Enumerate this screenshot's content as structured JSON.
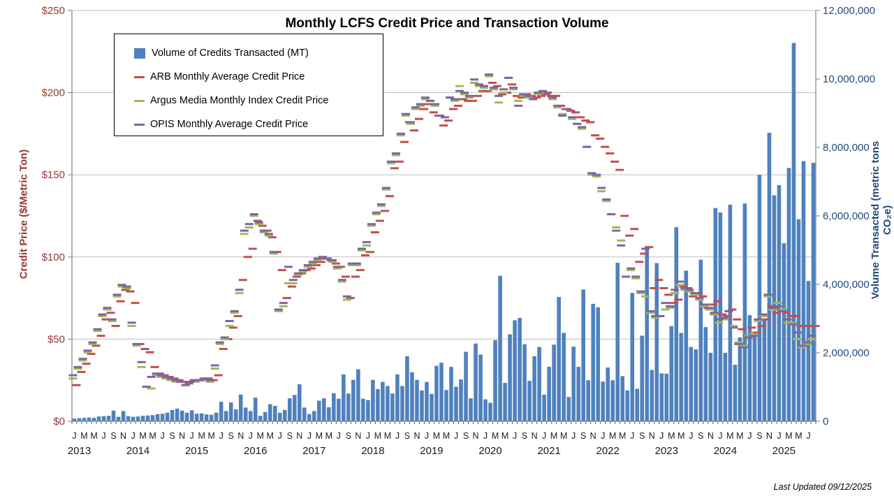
{
  "title": "Monthly LCFS Credit Price and Transaction Volume",
  "footer": "Last Updated 09/12/2025",
  "legend": {
    "volume_label": "Volume of Credits Transacted (MT)",
    "arb_label": "ARB Monthly Average Credit Price",
    "argus_label": "Argus Media Monthly Index Credit Price",
    "opis_label": "OPIS Monthly Average Credit Price"
  },
  "axes": {
    "left_title": "Credit Price  ($/Metric Ton)",
    "right_title": "Volume Transacted (metric tons CO₂e)",
    "left_tick_labels": [
      "$0",
      "$50",
      "$100",
      "$150",
      "$200",
      "$250"
    ],
    "right_tick_labels": [
      "0",
      "2,000,000",
      "4,000,000",
      "6,000,000",
      "8,000,000",
      "10,000,000",
      "12,000,000"
    ]
  },
  "colors": {
    "bar_blue": "#4F81BD",
    "arb_red": "#C0504D",
    "argus_green": "#9BBB59",
    "opis_purple": "#8064A2",
    "left_axis_text": "#953735",
    "right_axis_text": "#1F497D",
    "gridline": "#BFBFBF",
    "axis_line": "#808080"
  },
  "chart_data": {
    "type": "bar",
    "title": "Monthly LCFS Credit Price and Transaction Volume",
    "xlabel": "",
    "left_axis": {
      "label": "Credit Price ($/Metric Ton)",
      "min": 0,
      "max": 250,
      "tick_step": 50
    },
    "right_axis": {
      "label": "Volume Transacted (metric tons CO2e)",
      "min": 0,
      "max": 12000000,
      "tick_step": 2000000
    },
    "grid": true,
    "legend_position": "top-left-inside",
    "years": [
      {
        "label": "2013",
        "months": 12
      },
      {
        "label": "2014",
        "months": 12
      },
      {
        "label": "2015",
        "months": 12
      },
      {
        "label": "2016",
        "months": 12
      },
      {
        "label": "2017",
        "months": 12
      },
      {
        "label": "2018",
        "months": 12
      },
      {
        "label": "2019",
        "months": 12
      },
      {
        "label": "2020",
        "months": 12
      },
      {
        "label": "2021",
        "months": 12
      },
      {
        "label": "2022",
        "months": 12
      },
      {
        "label": "2023",
        "months": 12
      },
      {
        "label": "2024",
        "months": 12
      },
      {
        "label": "2025",
        "months": 8
      }
    ],
    "month_tick_letters": [
      "J",
      "",
      "M",
      "",
      "M",
      "",
      "J",
      "",
      "S",
      "",
      "N",
      ""
    ],
    "series": [
      {
        "name": "Volume of Credits Transacted (MT)",
        "type": "bar",
        "axis": "right",
        "color": "#4F81BD",
        "unit": "million metric tons",
        "values": [
          0.08,
          0.09,
          0.1,
          0.11,
          0.1,
          0.14,
          0.15,
          0.16,
          0.31,
          0.13,
          0.3,
          0.15,
          0.13,
          0.14,
          0.16,
          0.17,
          0.18,
          0.21,
          0.22,
          0.25,
          0.33,
          0.37,
          0.31,
          0.25,
          0.32,
          0.22,
          0.23,
          0.2,
          0.19,
          0.25,
          0.57,
          0.3,
          0.55,
          0.35,
          0.78,
          0.4,
          0.3,
          0.69,
          0.16,
          0.27,
          0.5,
          0.45,
          0.25,
          0.33,
          0.67,
          0.77,
          1.08,
          0.4,
          0.21,
          0.3,
          0.6,
          0.67,
          0.41,
          0.82,
          0.66,
          1.37,
          0.81,
          1.21,
          1.52,
          0.66,
          0.62,
          1.21,
          0.94,
          1.15,
          1.03,
          0.81,
          1.37,
          1.03,
          1.9,
          1.43,
          1.21,
          0.9,
          1.15,
          0.8,
          1.62,
          1.71,
          0.91,
          1.59,
          1.01,
          1.22,
          2.03,
          0.67,
          2.27,
          1.95,
          0.64,
          0.54,
          2.37,
          4.25,
          1.12,
          2.54,
          2.95,
          3.02,
          2.25,
          1.18,
          1.9,
          2.17,
          0.78,
          1.59,
          2.24,
          3.63,
          2.58,
          0.71,
          2.18,
          1.59,
          3.85,
          1.2,
          3.43,
          3.33,
          1.16,
          1.57,
          1.2,
          4.63,
          1.32,
          0.9,
          3.75,
          0.95,
          2.5,
          5.07,
          1.5,
          4.62,
          1.4,
          1.39,
          2.78,
          5.67,
          2.58,
          4.4,
          2.17,
          2.1,
          4.72,
          2.75,
          2.0,
          6.23,
          6.1,
          2.0,
          6.33,
          1.65,
          2.45,
          6.36,
          3.1,
          2.6,
          7.2,
          3.0,
          8.43,
          6.6,
          6.9,
          5.2,
          7.4,
          11.05,
          5.9,
          7.6,
          4.1,
          7.55
        ]
      },
      {
        "name": "ARB Monthly Average Credit Price",
        "type": "dash",
        "axis": "left",
        "color": "#C0504D",
        "unit": "$/MT",
        "values": [
          22,
          30,
          35,
          41,
          46,
          52,
          62,
          66,
          58,
          73,
          80,
          79,
          72,
          47,
          44,
          42,
          33,
          29,
          28,
          27,
          26,
          25,
          24,
          23,
          25,
          25,
          26,
          26,
          25,
          28,
          44,
          50,
          57,
          64,
          86,
          100,
          105,
          122,
          119,
          116,
          112,
          103,
          92,
          75,
          82,
          88,
          90,
          92,
          93,
          95,
          97,
          99,
          98,
          96,
          94,
          88,
          75,
          88,
          92,
          101,
          103,
          115,
          122,
          128,
          137,
          154,
          158,
          170,
          182,
          177,
          184,
          190,
          193,
          188,
          186,
          180,
          183,
          190,
          192,
          196,
          195,
          195,
          198,
          201,
          201,
          206,
          204,
          199,
          200,
          205,
          198,
          197,
          199,
          198,
          197,
          198,
          199,
          198,
          198,
          192,
          190,
          189,
          188,
          185,
          183,
          182,
          174,
          172,
          167,
          163,
          158,
          153,
          125,
          113,
          117,
          97,
          102,
          106,
          81,
          86,
          81,
          77,
          72,
          74,
          82,
          81,
          76,
          78,
          76,
          69,
          71,
          73,
          65,
          64,
          68,
          62,
          56,
          52,
          57,
          54,
          58,
          62,
          70,
          66,
          68,
          66,
          64,
          64,
          58,
          58,
          58,
          58
        ]
      },
      {
        "name": "Argus Media Monthly Index Credit Price",
        "type": "dash",
        "axis": "left",
        "color": "#9BBB59",
        "unit": "$/MT",
        "values": [
          26,
          32,
          37,
          42,
          47,
          55,
          64,
          68,
          61,
          76,
          82,
          81,
          58,
          46,
          33,
          21,
          20,
          28,
          27,
          26,
          25,
          24,
          24,
          22,
          24,
          24,
          25,
          25,
          24,
          32,
          47,
          50,
          58,
          66,
          78,
          114,
          118,
          125,
          120,
          115,
          113,
          102,
          67,
          70,
          84,
          84,
          89,
          91,
          94,
          96,
          98,
          100,
          99,
          97,
          93,
          85,
          74,
          95,
          95,
          104,
          107,
          119,
          126,
          131,
          141,
          157,
          162,
          174,
          186,
          181,
          190,
          192,
          196,
          195,
          192,
          186,
          185,
          197,
          195,
          204,
          199,
          197,
          206,
          204,
          203,
          210,
          202,
          194,
          200,
          209,
          202,
          195,
          198,
          197,
          196,
          199,
          200,
          200,
          196,
          191,
          187,
          190,
          184,
          181,
          178,
          167,
          150,
          149,
          140,
          134,
          126,
          118,
          110,
          88,
          92,
          87,
          78,
          76,
          66,
          63,
          64,
          68,
          69,
          78,
          83,
          80,
          79,
          77,
          74,
          70,
          68,
          65,
          60,
          62,
          67,
          58,
          48,
          46,
          52,
          53,
          61,
          64,
          76,
          68,
          72,
          68,
          60,
          60,
          50,
          45,
          47,
          50
        ]
      },
      {
        "name": "OPIS Monthly Average Credit Price",
        "type": "dash",
        "axis": "left",
        "color": "#8064A2",
        "unit": "$/MT",
        "values": [
          28,
          33,
          38,
          43,
          48,
          56,
          65,
          69,
          62,
          77,
          83,
          82,
          60,
          47,
          36,
          21,
          27,
          29,
          28,
          27,
          26,
          25,
          24,
          22,
          24,
          25,
          25,
          26,
          25,
          34,
          48,
          51,
          61,
          67,
          80,
          116,
          120,
          126,
          121,
          116,
          114,
          103,
          68,
          72,
          94,
          86,
          90,
          92,
          95,
          97,
          99,
          100,
          99,
          98,
          94,
          86,
          76,
          96,
          96,
          105,
          109,
          120,
          127,
          132,
          142,
          158,
          163,
          175,
          187,
          182,
          191,
          193,
          197,
          195,
          193,
          186,
          185,
          197,
          196,
          201,
          200,
          198,
          208,
          205,
          204,
          211,
          203,
          198,
          202,
          209,
          203,
          192,
          199,
          198,
          196,
          200,
          201,
          200,
          197,
          192,
          186,
          190,
          185,
          181,
          179,
          167,
          151,
          150,
          142,
          135,
          126,
          116,
          107,
          88,
          93,
          88,
          79,
          105,
          67,
          64,
          64,
          72,
          70,
          80,
          85,
          81,
          80,
          78,
          75,
          71,
          69,
          66,
          62,
          63,
          67,
          57,
          47,
          45,
          51,
          52,
          62,
          65,
          77,
          69,
          70,
          67,
          62,
          59,
          54,
          46,
          48,
          52
        ]
      }
    ]
  }
}
